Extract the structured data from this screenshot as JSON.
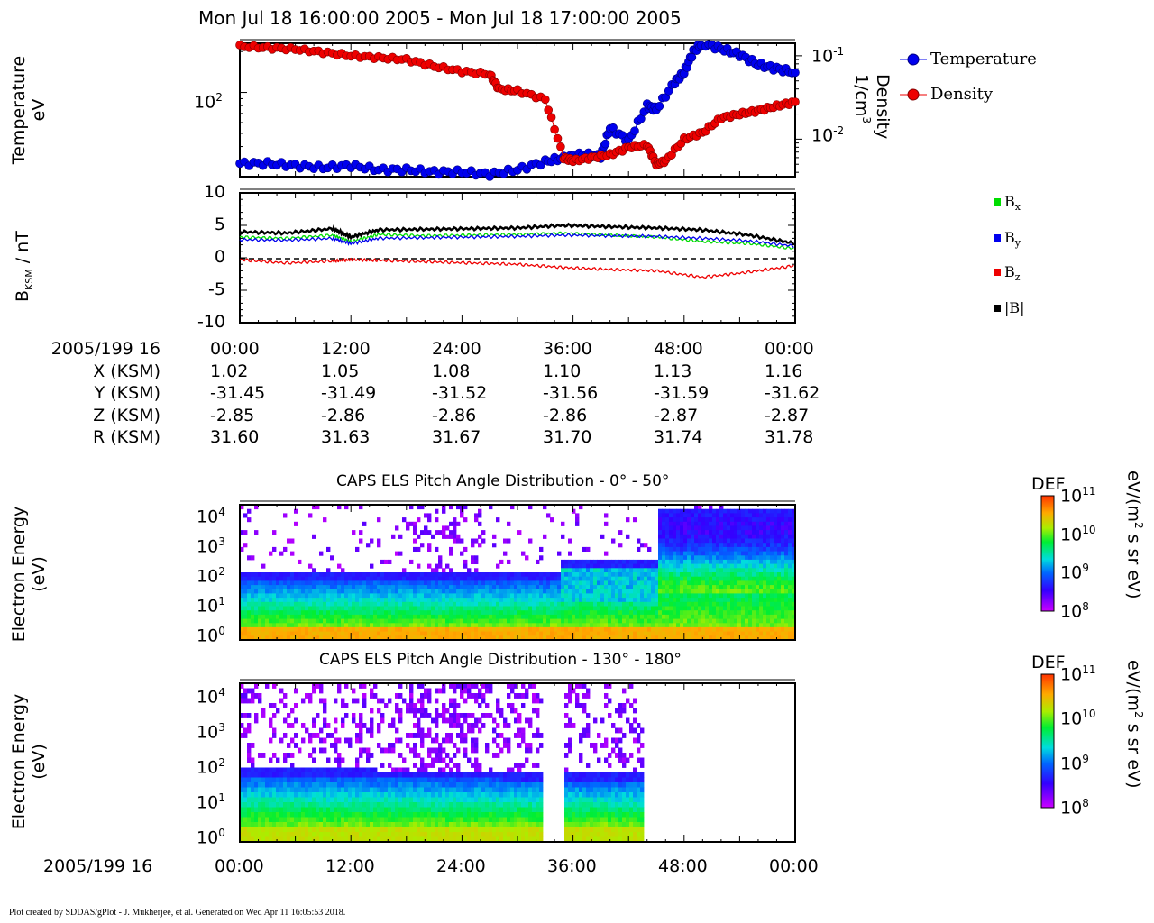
{
  "header": {
    "title": "Mon Jul 18 16:00:00 2005 - Mon Jul 18 17:00:00 2005"
  },
  "panel1": {
    "ylabel_left_1": "Temperature",
    "ylabel_left_2": "eV",
    "ylabel_right_1": "Density",
    "ylabel_right_2": "1/cm",
    "ylabel_right_sup": "3",
    "left_tick": "10",
    "left_tick_sup": "2",
    "right_tick_top": "10",
    "right_tick_top_sup": "-1",
    "right_tick_bot": "10",
    "right_tick_bot_sup": "-2",
    "legend": [
      {
        "label": "Temperature",
        "color": "#0000ee"
      },
      {
        "label": "Density",
        "color": "#ee0000"
      }
    ]
  },
  "panel2": {
    "ylabel": "B",
    "ylabel_sub": "KSM",
    "ylabel_unit": " / nT",
    "legend": [
      {
        "label": "B",
        "sub": "x",
        "color": "#00dd00"
      },
      {
        "label": "B",
        "sub": "y",
        "color": "#0000ee"
      },
      {
        "label": "B",
        "sub": "z",
        "color": "#ee0000"
      },
      {
        "label": "|B|",
        "sub": "",
        "color": "#000000"
      }
    ]
  },
  "ephemeris": {
    "rows": [
      {
        "label": "2005/199 16",
        "values": [
          "00:00",
          "12:00",
          "24:00",
          "36:00",
          "48:00",
          "00:00"
        ]
      },
      {
        "label": "X (KSM)",
        "values": [
          "1.02",
          "1.05",
          "1.08",
          "1.10",
          "1.13",
          "1.16"
        ]
      },
      {
        "label": "Y (KSM)",
        "values": [
          "-31.45",
          "-31.49",
          "-31.52",
          "-31.56",
          "-31.59",
          "-31.62"
        ]
      },
      {
        "label": "Z (KSM)",
        "values": [
          "-2.85",
          "-2.86",
          "-2.86",
          "-2.86",
          "-2.87",
          "-2.87"
        ]
      },
      {
        "label": "R (KSM)",
        "values": [
          "31.60",
          "31.63",
          "31.67",
          "31.70",
          "31.74",
          "31.78"
        ]
      }
    ]
  },
  "spectrogram1": {
    "title": "CAPS ELS Pitch Angle Distribution - 0° - 50°",
    "ylabel_1": "Electron Energy",
    "ylabel_2": "(eV)"
  },
  "spectrogram2": {
    "title": "CAPS ELS Pitch Angle Distribution - 130° - 180°",
    "ylabel_1": "Electron Energy",
    "ylabel_2": "(eV)"
  },
  "colorbar": {
    "label": "DEF",
    "unit_pre": "eV/(m",
    "unit_sup": "2",
    "unit_post": " s sr eV)",
    "ticks": [
      {
        "base": "10",
        "exp": "11"
      },
      {
        "base": "10",
        "exp": "10"
      },
      {
        "base": "10",
        "exp": "9"
      },
      {
        "base": "10",
        "exp": "8"
      }
    ]
  },
  "bottom_axis": {
    "label": "2005/199 16",
    "ticks": [
      "00:00",
      "12:00",
      "24:00",
      "36:00",
      "48:00",
      "00:00"
    ]
  },
  "footer": "Plot created by SDDAS/gPlot - J. Mukherjee, et al.  Generated on Wed Apr 11 16:05:53 2018.",
  "chart_data": [
    {
      "type": "line",
      "name_key": "temperature_density",
      "x_unit": "minutes after 16:00",
      "xlim": [
        0,
        60
      ],
      "series": [
        {
          "name": "Temperature",
          "color": "#0000ee",
          "axis": "left (eV, log)",
          "x": [
            0,
            3,
            6,
            9,
            12,
            15,
            18,
            21,
            24,
            27,
            30,
            33,
            35,
            37,
            39,
            40,
            42,
            44,
            45,
            47,
            48,
            49,
            50,
            52,
            54,
            56,
            58,
            60
          ],
          "values": [
            30,
            30,
            29,
            28,
            29,
            27,
            27,
            26,
            26,
            25,
            27,
            31,
            33,
            35,
            34,
            55,
            44,
            80,
            75,
            120,
            140,
            200,
            230,
            210,
            190,
            160,
            150,
            140
          ]
        },
        {
          "name": "Density",
          "color": "#ee0000",
          "axis": "right (1/cm^3, log)",
          "x": [
            0,
            3,
            6,
            9,
            12,
            15,
            18,
            21,
            24,
            27,
            28,
            30,
            33,
            35,
            36,
            38,
            40,
            42,
            44,
            45,
            46,
            48,
            50,
            52,
            54,
            56,
            58,
            60
          ],
          "values": [
            0.13,
            0.125,
            0.12,
            0.11,
            0.1,
            0.095,
            0.09,
            0.075,
            0.065,
            0.06,
            0.04,
            0.038,
            0.03,
            0.006,
            0.0055,
            0.006,
            0.0065,
            0.008,
            0.0085,
            0.005,
            0.0055,
            0.01,
            0.012,
            0.018,
            0.02,
            0.022,
            0.025,
            0.028
          ]
        }
      ]
    },
    {
      "type": "line",
      "name_key": "magnetic_field",
      "x_unit": "minutes after 16:00",
      "xlim": [
        0,
        60
      ],
      "ylim": [
        -10,
        10
      ],
      "series": [
        {
          "name": "Bx",
          "color": "#00dd00",
          "x": [
            0,
            5,
            10,
            12,
            15,
            20,
            25,
            30,
            35,
            40,
            45,
            50,
            55,
            60
          ],
          "values": [
            3.2,
            3.0,
            3.5,
            2.5,
            3.6,
            3.4,
            3.5,
            3.6,
            3.8,
            3.5,
            3.2,
            2.5,
            2.2,
            1.4
          ]
        },
        {
          "name": "By",
          "color": "#0000ee",
          "x": [
            0,
            5,
            10,
            12,
            15,
            20,
            25,
            30,
            35,
            40,
            45,
            50,
            55,
            60
          ],
          "values": [
            2.8,
            2.7,
            3.0,
            2.2,
            3.0,
            3.1,
            3.2,
            3.3,
            3.5,
            3.4,
            3.3,
            3.0,
            2.6,
            1.8
          ]
        },
        {
          "name": "Bz",
          "color": "#ee0000",
          "x": [
            0,
            5,
            10,
            12,
            15,
            20,
            25,
            30,
            35,
            40,
            45,
            50,
            55,
            60
          ],
          "values": [
            -0.3,
            -0.8,
            -0.5,
            -0.3,
            -0.4,
            -0.6,
            -0.8,
            -1.0,
            -1.5,
            -1.8,
            -2.0,
            -3.0,
            -2.2,
            -1.2
          ]
        },
        {
          "name": "|B|",
          "color": "#000000",
          "x": [
            0,
            5,
            10,
            12,
            15,
            20,
            25,
            30,
            35,
            40,
            45,
            50,
            55,
            60
          ],
          "values": [
            4.0,
            3.8,
            4.5,
            3.2,
            4.3,
            4.4,
            4.5,
            4.6,
            5.0,
            4.8,
            4.6,
            4.3,
            3.5,
            2.2
          ]
        }
      ]
    }
  ]
}
